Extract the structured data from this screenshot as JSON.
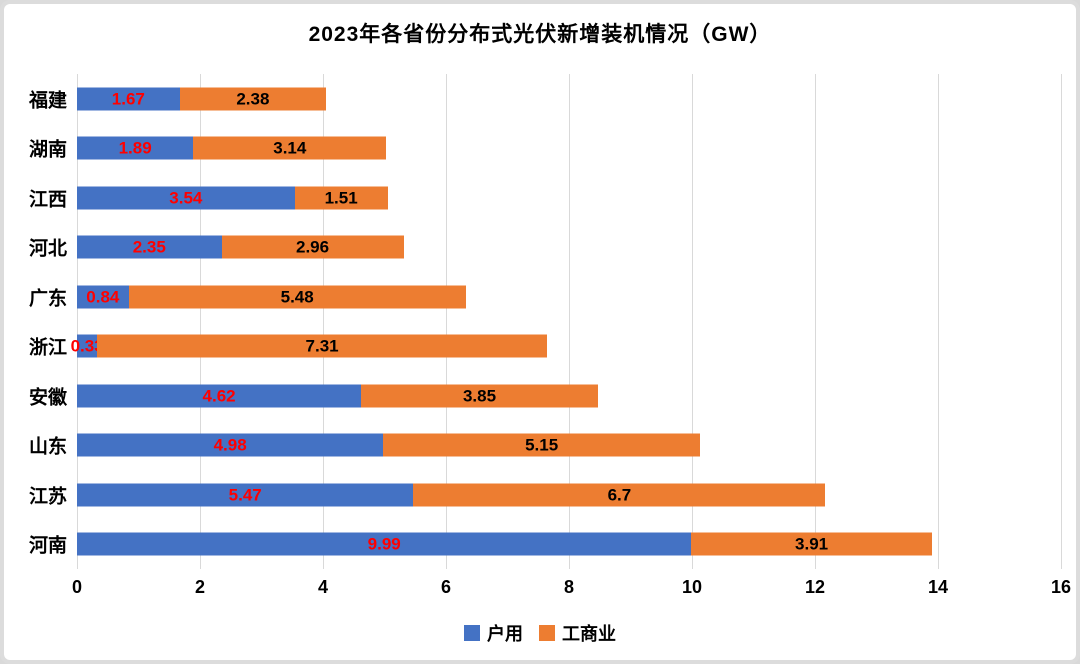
{
  "frame": {
    "background": "#ffffff",
    "border_color": "#dcdcdc"
  },
  "chart_data": {
    "type": "bar",
    "orientation": "horizontal",
    "stacked": true,
    "title": "2023年各省份分布式光伏新增装机情况（GW）",
    "categories": [
      "福建",
      "湖南",
      "江西",
      "河北",
      "广东",
      "浙江",
      "安徽",
      "山东",
      "江苏",
      "河南"
    ],
    "series": [
      {
        "name": "户用",
        "color": "#4472C4",
        "label_color": "#FF0000",
        "values": [
          1.67,
          1.89,
          3.54,
          2.35,
          0.84,
          0.33,
          4.62,
          4.98,
          5.47,
          9.99
        ]
      },
      {
        "name": "工商业",
        "color": "#ED7D31",
        "label_color": "#000000",
        "values": [
          2.38,
          3.14,
          1.51,
          2.96,
          5.48,
          7.31,
          3.85,
          5.15,
          6.7,
          3.91
        ]
      }
    ],
    "xlabel": "",
    "ylabel": "",
    "xlim": [
      0,
      16
    ],
    "xticks": [
      0,
      2,
      4,
      6,
      8,
      10,
      12,
      14,
      16
    ],
    "grid": "vertical",
    "gridline_color": "#d9d9d9",
    "legend_position": "bottom"
  }
}
